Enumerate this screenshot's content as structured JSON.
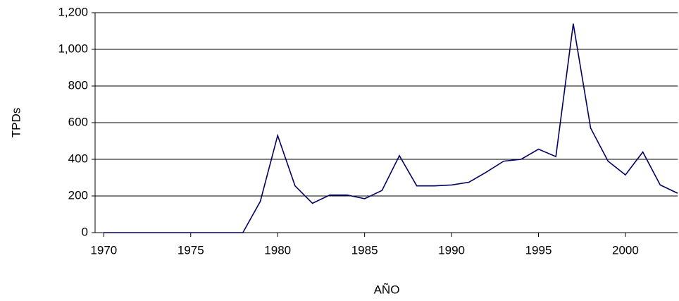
{
  "chart_data": {
    "type": "line",
    "x": [
      1970,
      1971,
      1972,
      1973,
      1974,
      1975,
      1976,
      1977,
      1978,
      1979,
      1980,
      1981,
      1982,
      1983,
      1984,
      1985,
      1986,
      1987,
      1988,
      1989,
      1990,
      1991,
      1992,
      1993,
      1994,
      1995,
      1996,
      1997,
      1998,
      1999,
      2000,
      2001,
      2002,
      2003
    ],
    "series": [
      {
        "name": "TPDs",
        "color": "#000066",
        "values": [
          0,
          0,
          0,
          0,
          0,
          0,
          0,
          0,
          0,
          170,
          530,
          255,
          160,
          205,
          205,
          185,
          230,
          420,
          255,
          255,
          260,
          275,
          330,
          390,
          400,
          455,
          415,
          1140,
          570,
          390,
          315,
          440,
          260,
          215
        ]
      }
    ],
    "xlabel": "AÑO",
    "ylabel": "TPDs",
    "xlim": [
      1969.5,
      2003
    ],
    "xticks": [
      1970,
      1975,
      1980,
      1985,
      1990,
      1995,
      2000
    ],
    "ylim": [
      0,
      1200
    ],
    "yticks": [
      0,
      200,
      400,
      600,
      800,
      {
        "value": 1000,
        "label": "1,000"
      },
      {
        "value": 1200,
        "label": "1,200"
      }
    ],
    "grid": true
  }
}
